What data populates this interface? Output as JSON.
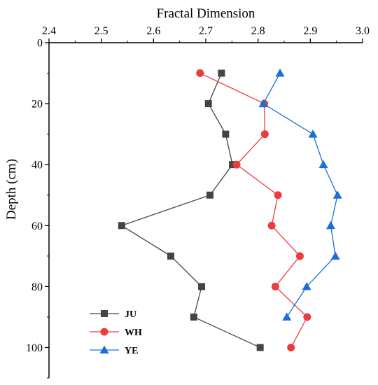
{
  "chart_data": {
    "type": "line",
    "xlabel": "Fractal Dimension",
    "ylabel": "Depth (cm)",
    "xlim": [
      2.4,
      3.0
    ],
    "ylim": [
      0,
      110
    ],
    "y_inverted": true,
    "x_axis_position": "top",
    "grid": false,
    "legend_position": "bottom-left",
    "x_ticks": [
      2.4,
      2.5,
      2.6,
      2.7,
      2.8,
      2.9,
      3.0
    ],
    "x_tick_labels": [
      "2.4",
      "2.5",
      "2.6",
      "2.7",
      "2.8",
      "2.9",
      "3.0"
    ],
    "y_ticks": [
      0,
      20,
      40,
      60,
      80,
      100
    ],
    "y_tick_labels": [
      "0",
      "20",
      "40",
      "60",
      "80",
      "100"
    ],
    "series": [
      {
        "name": "JU",
        "color": "#444444",
        "marker": "square",
        "x": [
          2.73,
          2.705,
          2.738,
          2.751,
          2.708,
          2.539,
          2.633,
          2.692,
          2.677,
          2.804
        ],
        "y": [
          10,
          20,
          30,
          40,
          50,
          60,
          70,
          80,
          90,
          100
        ]
      },
      {
        "name": "WH",
        "color": "#ee3b3b",
        "marker": "circle",
        "x": [
          2.689,
          2.812,
          2.813,
          2.759,
          2.838,
          2.826,
          2.88,
          2.833,
          2.894,
          2.863
        ],
        "y": [
          10,
          20,
          30,
          40,
          50,
          60,
          70,
          80,
          90,
          100
        ]
      },
      {
        "name": "YE",
        "color": "#1c6fd6",
        "marker": "triangle",
        "x": [
          2.842,
          2.81,
          2.905,
          2.925,
          2.952,
          2.939,
          2.948,
          2.893,
          2.855
        ],
        "y": [
          10,
          20,
          30,
          40,
          50,
          60,
          70,
          80,
          90
        ]
      }
    ]
  }
}
